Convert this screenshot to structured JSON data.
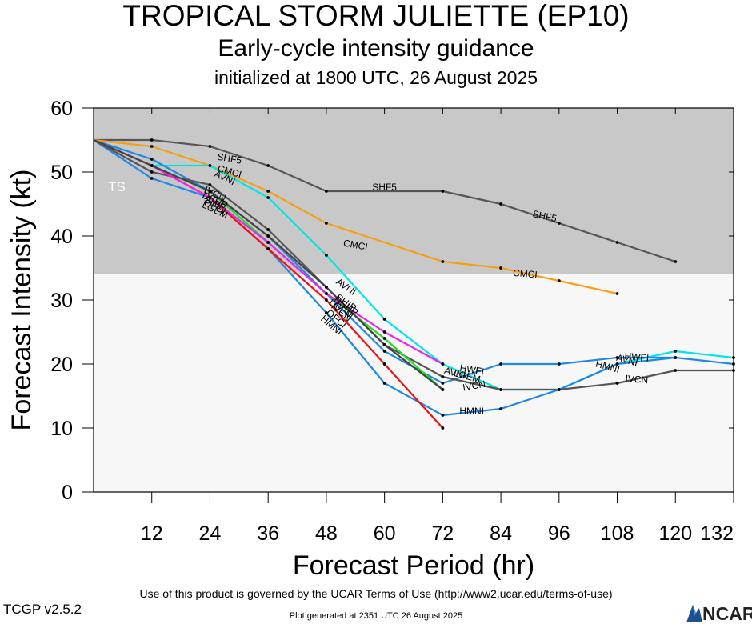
{
  "header": {
    "title": "TROPICAL STORM JULIETTE (EP10)",
    "subtitle": "Early-cycle intensity guidance",
    "init_line": "initialized at 1800 UTC, 26 August 2025"
  },
  "footer": {
    "terms": "Use of this product is governed by the UCAR Terms of Use (http://www2.ucar.edu/terms-of-use)",
    "version": "TCGP v2.5.2",
    "generated": "Plot generated at 2351 UTC   26 August 2025",
    "logo_text": "NCAR"
  },
  "chart_data": {
    "type": "line",
    "xlabel": "Forecast Period (hr)",
    "ylabel": "Forecast Intensity (kt)",
    "xlim": [
      0,
      132
    ],
    "ylim": [
      0,
      60
    ],
    "xticks": [
      12,
      24,
      36,
      48,
      60,
      72,
      84,
      96,
      108,
      120,
      132
    ],
    "yticks": [
      0,
      10,
      20,
      30,
      40,
      50,
      60
    ],
    "band": {
      "label": "TS",
      "from": 34,
      "to": 60,
      "color": "#c8c8c8"
    },
    "lower_band_color": "#f7f7f7",
    "series": [
      {
        "name": "SHF5",
        "color": "#555555",
        "x": [
          0,
          12,
          24,
          36,
          48,
          72,
          84,
          96,
          108,
          120
        ],
        "y": [
          55,
          55,
          54,
          51,
          47,
          47,
          45,
          42,
          39,
          36
        ]
      },
      {
        "name": "CMCI",
        "color": "#f5a010",
        "x": [
          0,
          12,
          24,
          36,
          48,
          72,
          84,
          96,
          108
        ],
        "y": [
          55,
          54,
          51,
          47,
          42,
          36,
          35,
          33,
          31
        ]
      },
      {
        "name": "AVNI",
        "color": "#00e5e5",
        "x": [
          0,
          12,
          24,
          36,
          48,
          60,
          72,
          84,
          96,
          108,
          120,
          132
        ],
        "y": [
          55,
          51,
          51,
          46,
          37,
          27,
          20,
          16,
          16,
          20,
          22,
          21
        ]
      },
      {
        "name": "HWFI",
        "color": "#1e88e5",
        "x": [
          0,
          12,
          24,
          36,
          48,
          60,
          72,
          84,
          96,
          108,
          120,
          132
        ],
        "y": [
          55,
          52,
          47,
          40,
          31,
          22,
          17,
          20,
          20,
          21,
          21,
          20
        ]
      },
      {
        "name": "HMNI",
        "color": "#1e88e5",
        "x": [
          0,
          12,
          24,
          36,
          48,
          60,
          72,
          84,
          96,
          108,
          120
        ],
        "y": [
          55,
          49,
          46,
          38,
          28,
          17,
          12,
          13,
          16,
          20,
          21
        ]
      },
      {
        "name": "IVCN",
        "color": "#555555",
        "x": [
          0,
          12,
          24,
          36,
          48,
          60,
          72,
          84,
          96,
          108,
          120,
          132
        ],
        "y": [
          55,
          50,
          48,
          41,
          32,
          23,
          18,
          16,
          16,
          17,
          19,
          19
        ]
      },
      {
        "name": "OFCI",
        "color": "#ee1111",
        "x": [
          0,
          12,
          24,
          36,
          48,
          60,
          72
        ],
        "y": [
          55,
          51,
          46,
          38,
          30,
          20,
          10
        ]
      },
      {
        "name": "SHIP",
        "color": "#22dd22",
        "x": [
          0,
          12,
          24,
          36,
          48,
          60,
          72
        ],
        "y": [
          55,
          51,
          47,
          39,
          31,
          24,
          16
        ]
      },
      {
        "name": "DSHP",
        "color": "#ee22ee",
        "x": [
          0,
          12,
          24,
          36,
          48,
          60,
          72
        ],
        "y": [
          55,
          51,
          46,
          39,
          31,
          25,
          20
        ]
      },
      {
        "name": "LGEM",
        "color": "#444444",
        "x": [
          0,
          12,
          24,
          36,
          48,
          60,
          72
        ],
        "y": [
          55,
          51,
          47,
          40,
          32,
          23,
          16
        ]
      }
    ],
    "labels": [
      {
        "text": "SHF5",
        "x": 28,
        "y": 52,
        "angle": 10
      },
      {
        "text": "SHF5",
        "x": 60,
        "y": 47.5,
        "angle": 0
      },
      {
        "text": "SHF5",
        "x": 93,
        "y": 43,
        "angle": 12
      },
      {
        "text": "CMCI",
        "x": 28,
        "y": 50,
        "angle": 16
      },
      {
        "text": "CMCI",
        "x": 54,
        "y": 38.5,
        "angle": 10
      },
      {
        "text": "CMCI",
        "x": 89,
        "y": 34,
        "angle": 5
      },
      {
        "text": "AVNI",
        "x": 27,
        "y": 49,
        "angle": 25
      },
      {
        "text": "AVNI",
        "x": 52,
        "y": 32,
        "angle": 35
      },
      {
        "text": "IVCN",
        "x": 25,
        "y": 46.5,
        "angle": 25
      },
      {
        "text": "DSHP",
        "x": 25,
        "y": 45.5,
        "angle": 25
      },
      {
        "text": "SHIP",
        "x": 25,
        "y": 45,
        "angle": 25
      },
      {
        "text": "OFCI",
        "x": 25,
        "y": 44.5,
        "angle": 25
      },
      {
        "text": "LGEM",
        "x": 25,
        "y": 44,
        "angle": 25
      },
      {
        "text": "SHIP",
        "x": 52,
        "y": 29.5,
        "angle": 35
      },
      {
        "text": "DSHP",
        "x": 52,
        "y": 29,
        "angle": 35
      },
      {
        "text": "LGEM",
        "x": 51,
        "y": 28.5,
        "angle": 35
      },
      {
        "text": "IVCN",
        "x": 51,
        "y": 28,
        "angle": 40
      },
      {
        "text": "OFCI",
        "x": 50,
        "y": 27,
        "angle": 40
      },
      {
        "text": "HMNI",
        "x": 49,
        "y": 26,
        "angle": 40
      },
      {
        "text": "AVNI",
        "x": 74.5,
        "y": 18.5,
        "angle": 15
      },
      {
        "text": "HWFI",
        "x": 78,
        "y": 19,
        "angle": 10
      },
      {
        "text": "LGEM",
        "x": 77,
        "y": 18,
        "angle": 15
      },
      {
        "text": "IVCN",
        "x": 78.5,
        "y": 16.5,
        "angle": -10
      },
      {
        "text": "HMNI",
        "x": 78,
        "y": 12.5,
        "angle": 0
      },
      {
        "text": "HWFI",
        "x": 112,
        "y": 21,
        "angle": 5
      },
      {
        "text": "HMNI",
        "x": 106,
        "y": 19.5,
        "angle": 15
      },
      {
        "text": "AVNI",
        "x": 110,
        "y": 20.5,
        "angle": 15
      },
      {
        "text": "IVCN",
        "x": 112,
        "y": 17.5,
        "angle": 5
      }
    ]
  }
}
